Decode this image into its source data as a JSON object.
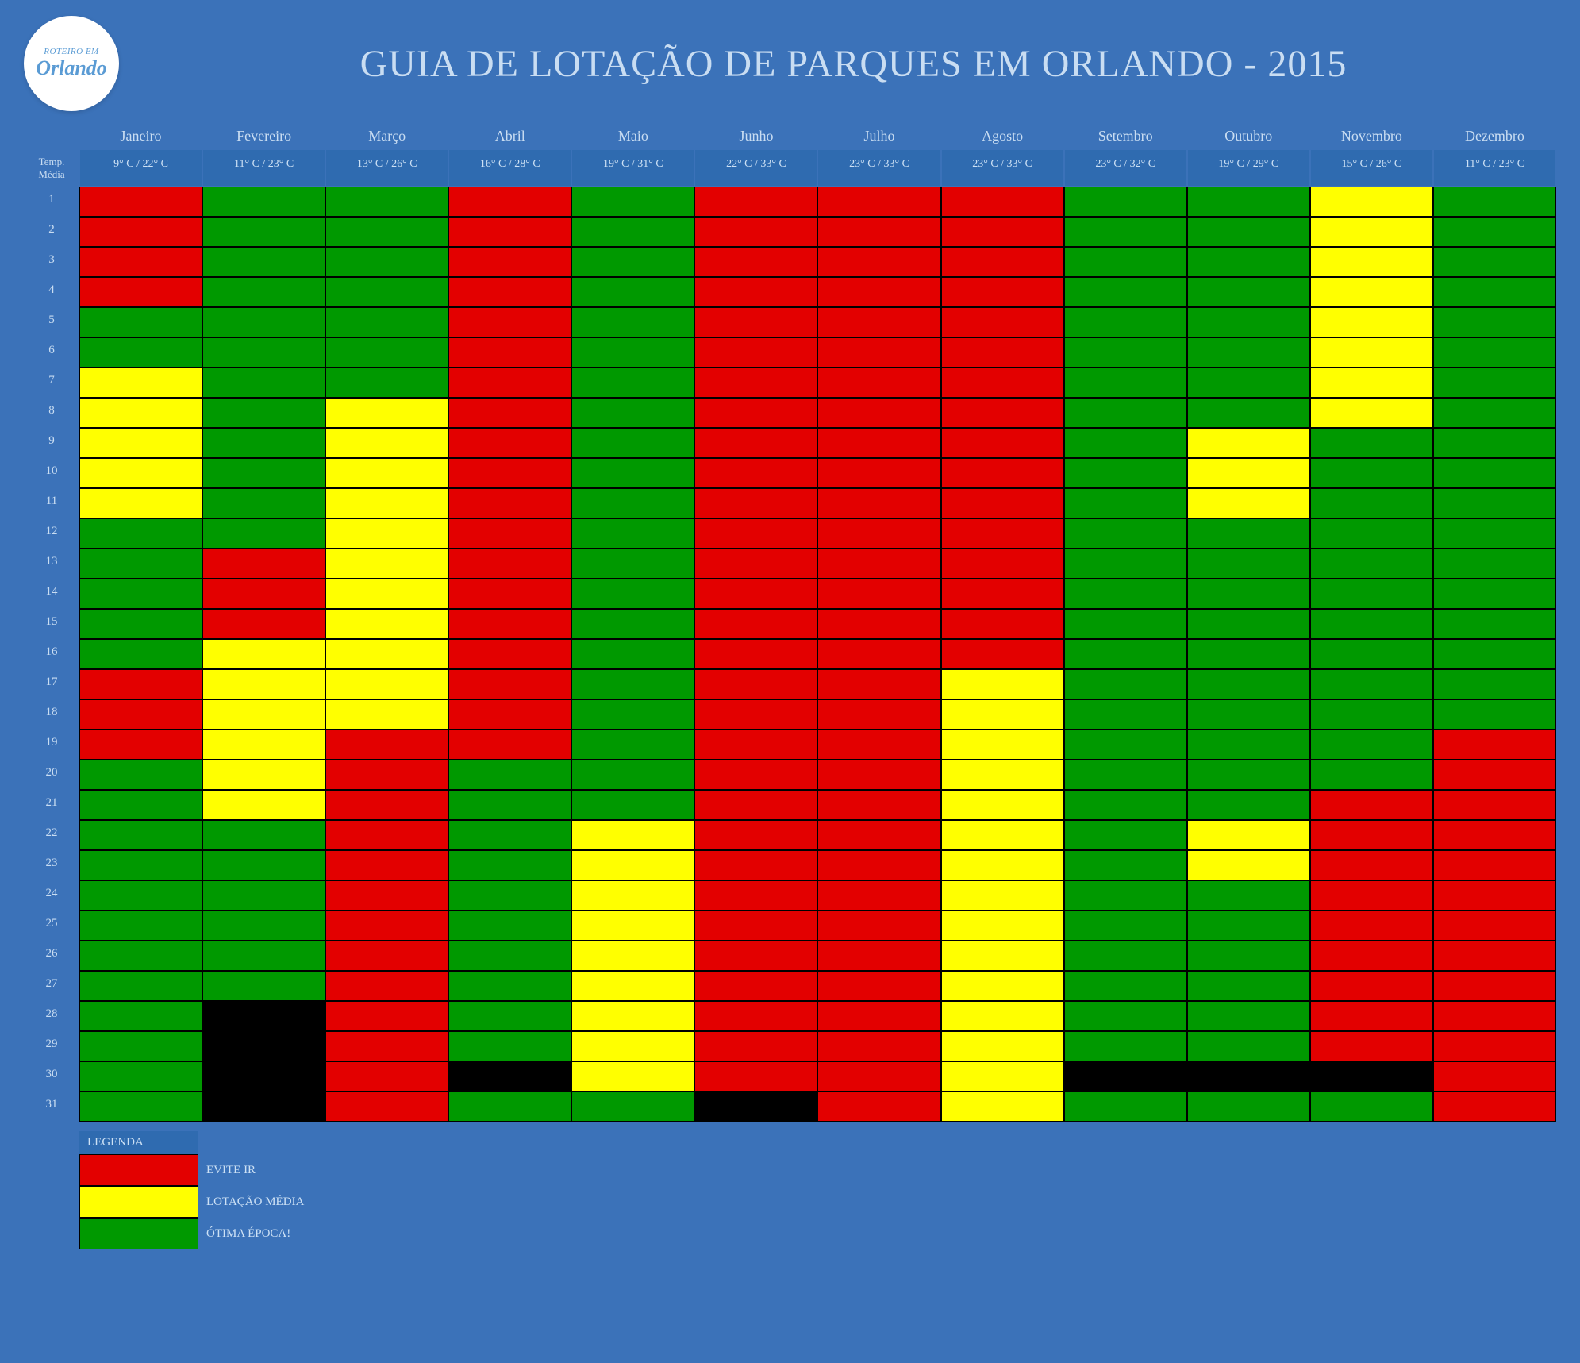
{
  "title": "GUIA DE LOTAÇÃO DE PARQUES EM ORLANDO - 2015",
  "logo": {
    "top": "ROTEIRO EM",
    "main": "Orlando"
  },
  "temp_header": "Temp. Média",
  "months": [
    "Janeiro",
    "Fevereiro",
    "Março",
    "Abril",
    "Maio",
    "Junho",
    "Julho",
    "Agosto",
    "Setembro",
    "Outubro",
    "Novembro",
    "Dezembro"
  ],
  "temps": [
    "9° C / 22° C",
    "11° C / 23° C",
    "13° C / 26° C",
    "16° C / 28° C",
    "19° C / 31° C",
    "22° C / 33° C",
    "23° C / 33° C",
    "23° C / 33° C",
    "23° C / 32° C",
    "19° C / 29° C",
    "15° C / 26° C",
    "11° C / 23° C"
  ],
  "colors": {
    "red": "#e30000",
    "yellow": "#ffff00",
    "green": "#009900",
    "black": "#000000",
    "bg": "#3b72b9",
    "hdr": "#2f6bb0"
  },
  "days": 31,
  "legend": {
    "title": "LEGENDA",
    "items": [
      {
        "color": "red",
        "label": "EVITE IR"
      },
      {
        "color": "yellow",
        "label": "LOTAÇÃO MÉDIA"
      },
      {
        "color": "green",
        "label": "ÓTIMA ÉPOCA!"
      }
    ]
  },
  "calendar_note": "Each string is one month's 31 days. r=red(avoid) y=yellow(medium) g=green(great) b=black(no-day)",
  "calendar": [
    "rrrrggyyyyygggggrrrgggggggggggg",
    "ggggggggggggrrryyyyyyggggggbbbb",
    "gggggggyyyyyyyyyyyrrrrrrrrrrrrr",
    "rrrrrrrrrrrrrrrrrrrggggggggggbg",
    "gggggggggggggggggggggyyyyyyyyyg",
    "rrrrrrrrrrrrrrrrrrrrrrrrrrrrrrb",
    "rrrrrrrrrrrrrrrrrrrrrrrrrrrrrrr",
    "rrrrrrrrrrrrrrrryyyyyyyyyyyyyyy",
    "gggggggggggggggggggggggggggggbg",
    "ggggggggyyyggggggggggyyggggggbg",
    "yyyyyyyyggggggggggggrrrrrrrrrbg",
    "ggggggggggggggggggrrrrrrrrrrrrr"
  ]
}
